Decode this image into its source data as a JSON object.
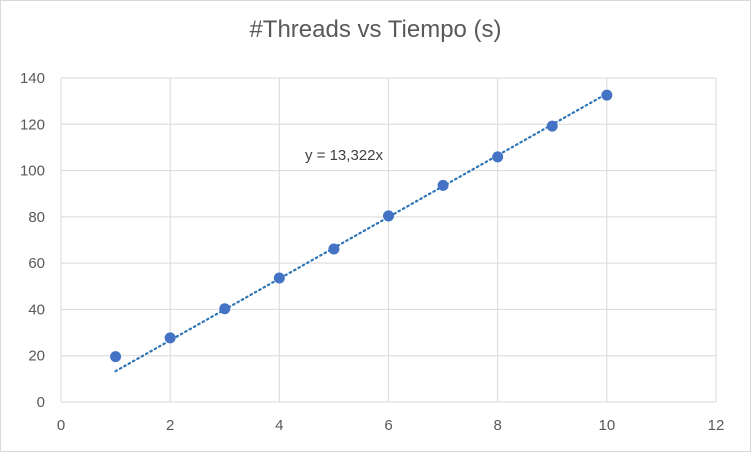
{
  "chart_data": {
    "type": "scatter",
    "title": "#Threads vs Tiempo (s)",
    "xlabel": "",
    "ylabel": "",
    "xlim": [
      0,
      12
    ],
    "ylim": [
      0,
      140
    ],
    "x_ticks": [
      0,
      2,
      4,
      6,
      8,
      10,
      12
    ],
    "y_ticks": [
      0,
      20,
      40,
      60,
      80,
      100,
      120,
      140
    ],
    "grid": true,
    "legend": "none",
    "series": [
      {
        "x": [
          1,
          2,
          3,
          4,
          5,
          6,
          7,
          8,
          9,
          10
        ],
        "y": [
          19.6,
          27.7,
          40.3,
          53.6,
          66.1,
          80.4,
          93.6,
          105.9,
          119.2,
          132.6
        ],
        "color": "#4472c4"
      }
    ],
    "trendline": {
      "equation": "y = 13,322x",
      "slope": 13.322,
      "x_range": [
        1,
        10
      ],
      "color": "#2e75b6",
      "style": "dotted"
    }
  }
}
